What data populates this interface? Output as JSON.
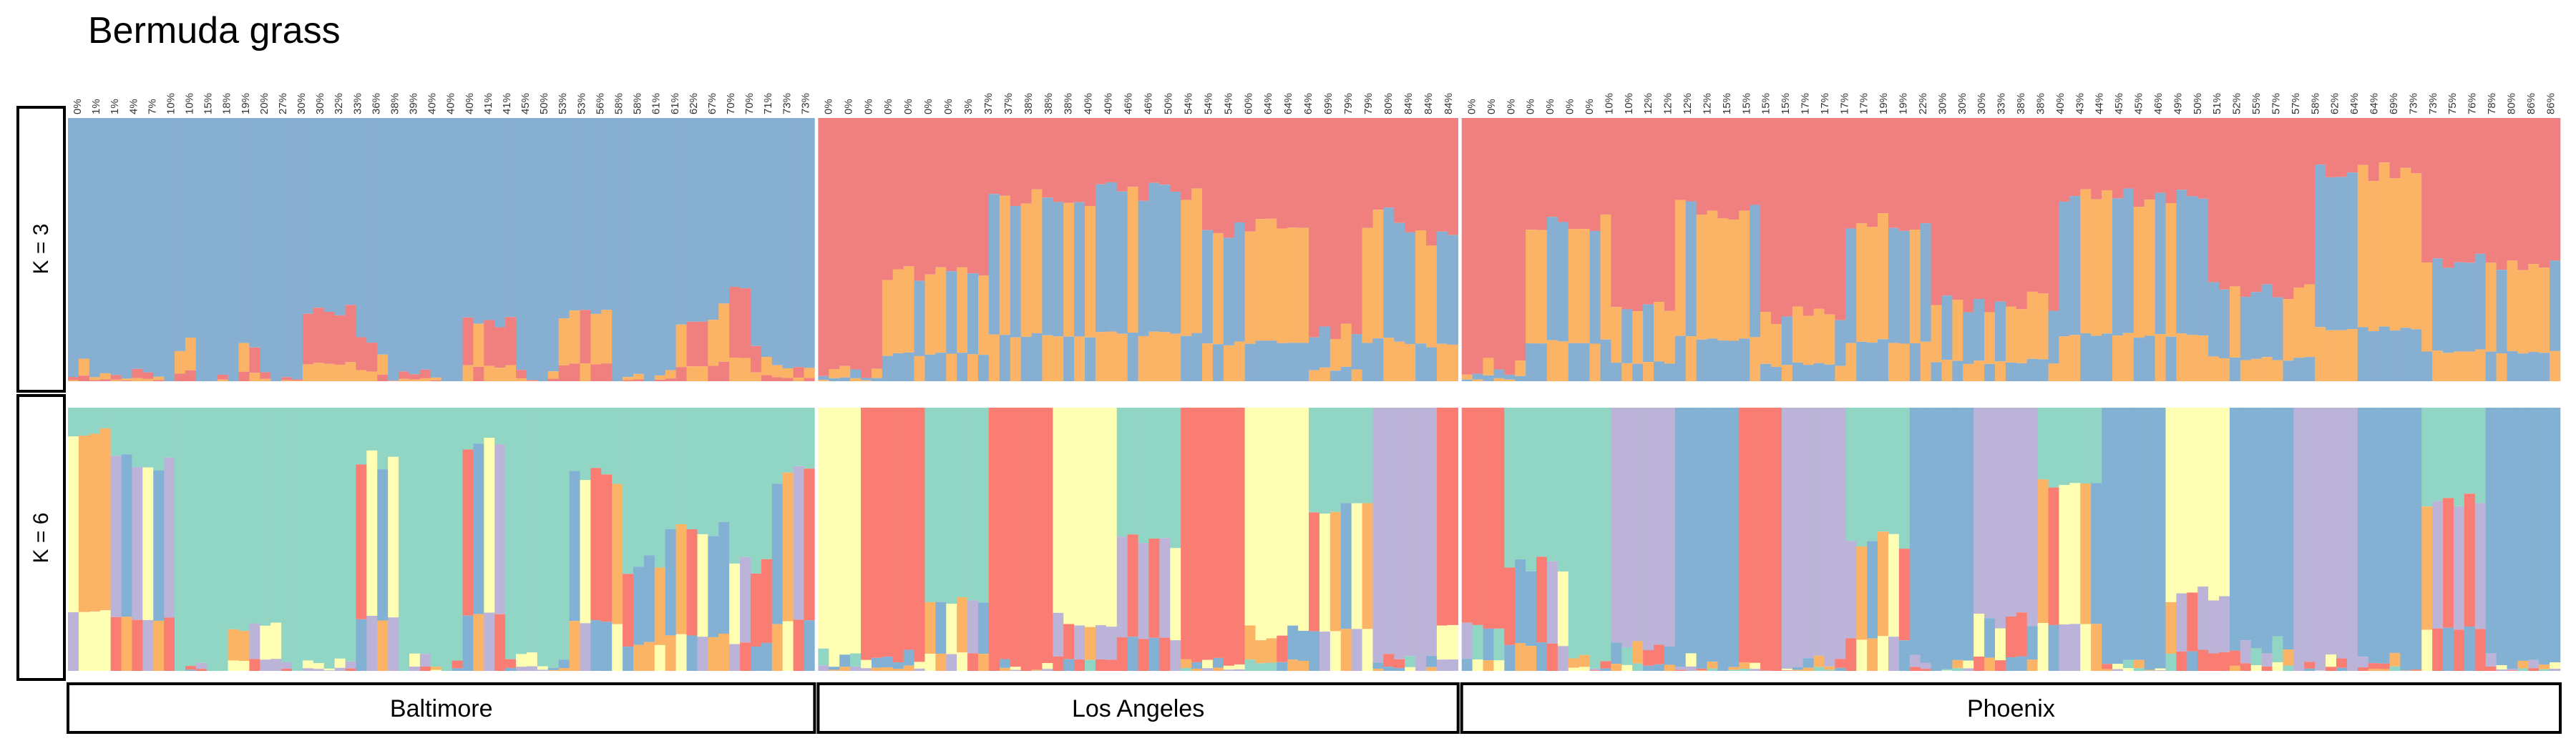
{
  "chart_data": {
    "type": "stacked-bar",
    "title": "Bermuda grass",
    "facets": [
      "K = 3",
      "K = 6"
    ],
    "populations": [
      {
        "name": "Baltimore",
        "n": 70,
        "labels": [
          "0%",
          "1%",
          "1%",
          "4%",
          "7%",
          "10%",
          "10%",
          "15%",
          "18%",
          "19%",
          "20%",
          "27%",
          "30%",
          "30%",
          "32%",
          "33%",
          "36%",
          "38%",
          "39%",
          "40%",
          "40%",
          "40%",
          "41%",
          "41%",
          "45%",
          "50%",
          "53%",
          "53%",
          "56%",
          "58%",
          "58%",
          "61%",
          "61%",
          "62%",
          "67%",
          "70%",
          "70%",
          "71%",
          "73%",
          "73%"
        ]
      },
      {
        "name": "Los Angeles",
        "n": 60,
        "labels": [
          "0%",
          "0%",
          "0%",
          "0%",
          "0%",
          "0%",
          "0%",
          "3%",
          "37%",
          "37%",
          "38%",
          "38%",
          "38%",
          "40%",
          "40%",
          "46%",
          "46%",
          "50%",
          "54%",
          "54%",
          "54%",
          "60%",
          "64%",
          "64%",
          "64%",
          "69%",
          "79%",
          "79%",
          "80%",
          "84%",
          "84%",
          "84%"
        ]
      },
      {
        "name": "Phoenix",
        "n": 103,
        "labels": [
          "0%",
          "0%",
          "0%",
          "0%",
          "0%",
          "0%",
          "0%",
          "10%",
          "10%",
          "12%",
          "12%",
          "12%",
          "12%",
          "15%",
          "15%",
          "15%",
          "15%",
          "17%",
          "17%",
          "17%",
          "17%",
          "19%",
          "19%",
          "22%",
          "30%",
          "30%",
          "30%",
          "33%",
          "38%",
          "38%",
          "40%",
          "43%",
          "44%",
          "45%",
          "45%",
          "46%",
          "49%",
          "50%",
          "51%",
          "52%",
          "55%",
          "57%",
          "57%",
          "58%",
          "62%",
          "64%",
          "64%",
          "69%",
          "73%",
          "73%",
          "75%",
          "76%",
          "78%",
          "80%",
          "86%",
          "86%"
        ]
      }
    ],
    "k3_clusters": [
      "#f08080",
      "#87afd2",
      "#fbb366"
    ],
    "k6_clusters": [
      "#91d5c5",
      "#ffffb3",
      "#bbb4d8",
      "#f97d72",
      "#82b1d3",
      "#fbb366"
    ],
    "k3_segments": [
      {
        "from": 0,
        "to": 2,
        "cluster": 1,
        "level": 0.95
      },
      {
        "from": 2,
        "to": 10,
        "cluster": 1,
        "level": 0.98
      },
      {
        "from": 10,
        "to": 12,
        "cluster": 1,
        "level": 0.86
      },
      {
        "from": 12,
        "to": 16,
        "cluster": 1,
        "level": 0.98
      },
      {
        "from": 16,
        "to": 18,
        "cluster": 1,
        "level": 0.86
      },
      {
        "from": 18,
        "to": 22,
        "cluster": 1,
        "level": 0.98
      },
      {
        "from": 22,
        "to": 27,
        "cluster": 1,
        "level": 0.75
      },
      {
        "from": 27,
        "to": 30,
        "cluster": 1,
        "level": 0.86
      },
      {
        "from": 30,
        "to": 37,
        "cluster": 1,
        "level": 0.98
      },
      {
        "from": 37,
        "to": 42,
        "cluster": 1,
        "level": 0.76
      },
      {
        "from": 42,
        "to": 46,
        "cluster": 1,
        "level": 0.98
      },
      {
        "from": 46,
        "to": 51,
        "cluster": 1,
        "level": 0.76
      },
      {
        "from": 51,
        "to": 57,
        "cluster": 1,
        "level": 0.98
      },
      {
        "from": 57,
        "to": 61,
        "cluster": 1,
        "level": 0.8
      },
      {
        "from": 61,
        "to": 64,
        "cluster": 1,
        "level": 0.68
      },
      {
        "from": 64,
        "to": 66,
        "cluster": 1,
        "level": 0.9
      },
      {
        "from": 66,
        "to": 70,
        "cluster": 1,
        "level": 0.96
      },
      {
        "from": 70,
        "to": 76,
        "cluster": 0,
        "level": 0.98
      },
      {
        "from": 76,
        "to": 86,
        "cluster": 0,
        "level": 0.6
      },
      {
        "from": 86,
        "to": 96,
        "cluster": 0,
        "level": 0.3
      },
      {
        "from": 96,
        "to": 106,
        "cluster": 0,
        "level": 0.28
      },
      {
        "from": 106,
        "to": 116,
        "cluster": 0,
        "level": 0.42
      },
      {
        "from": 116,
        "to": 121,
        "cluster": 0,
        "level": 0.8
      },
      {
        "from": 121,
        "to": 125,
        "cluster": 0,
        "level": 0.38
      },
      {
        "from": 125,
        "to": 130,
        "cluster": 0,
        "level": 0.45
      },
      {
        "from": 130,
        "to": 136,
        "cluster": 0,
        "level": 0.95
      },
      {
        "from": 136,
        "to": 144,
        "cluster": 0,
        "level": 0.4
      },
      {
        "from": 144,
        "to": 150,
        "cluster": 0,
        "level": 0.7
      },
      {
        "from": 150,
        "to": 158,
        "cluster": 0,
        "level": 0.35
      },
      {
        "from": 158,
        "to": 166,
        "cluster": 0,
        "level": 0.75
      },
      {
        "from": 166,
        "to": 174,
        "cluster": 0,
        "level": 0.4
      },
      {
        "from": 174,
        "to": 186,
        "cluster": 0,
        "level": 0.7
      },
      {
        "from": 186,
        "to": 200,
        "cluster": 0,
        "level": 0.3
      },
      {
        "from": 200,
        "to": 210,
        "cluster": 0,
        "level": 0.65
      },
      {
        "from": 210,
        "to": 220,
        "cluster": 0,
        "level": 0.2
      },
      {
        "from": 220,
        "to": 233,
        "cluster": 0,
        "level": 0.55
      }
    ],
    "k6_segments": [
      {
        "from": 0,
        "to": 4,
        "cluster": 0,
        "level": 0.1
      },
      {
        "from": 4,
        "to": 10,
        "cluster": 0,
        "level": 0.2
      },
      {
        "from": 10,
        "to": 15,
        "cluster": 0,
        "level": 0.97
      },
      {
        "from": 15,
        "to": 20,
        "cluster": 0,
        "level": 0.85
      },
      {
        "from": 20,
        "to": 27,
        "cluster": 0,
        "level": 0.97
      },
      {
        "from": 27,
        "to": 31,
        "cluster": 0,
        "level": 0.2
      },
      {
        "from": 31,
        "to": 37,
        "cluster": 0,
        "level": 0.97
      },
      {
        "from": 37,
        "to": 41,
        "cluster": 0,
        "level": 0.15
      },
      {
        "from": 41,
        "to": 47,
        "cluster": 0,
        "level": 0.97
      },
      {
        "from": 47,
        "to": 52,
        "cluster": 0,
        "level": 0.25
      },
      {
        "from": 52,
        "to": 56,
        "cluster": 0,
        "level": 0.6
      },
      {
        "from": 56,
        "to": 62,
        "cluster": 0,
        "level": 0.45
      },
      {
        "from": 62,
        "to": 66,
        "cluster": 0,
        "level": 0.6
      },
      {
        "from": 66,
        "to": 70,
        "cluster": 0,
        "level": 0.25
      },
      {
        "from": 70,
        "to": 74,
        "cluster": 1,
        "level": 0.95
      },
      {
        "from": 74,
        "to": 80,
        "cluster": 3,
        "level": 0.95
      },
      {
        "from": 80,
        "to": 86,
        "cluster": 0,
        "level": 0.75
      },
      {
        "from": 86,
        "to": 92,
        "cluster": 3,
        "level": 0.97
      },
      {
        "from": 92,
        "to": 98,
        "cluster": 1,
        "level": 0.8
      },
      {
        "from": 98,
        "to": 104,
        "cluster": 0,
        "level": 0.5
      },
      {
        "from": 104,
        "to": 110,
        "cluster": 3,
        "level": 0.97
      },
      {
        "from": 110,
        "to": 116,
        "cluster": 1,
        "level": 0.85
      },
      {
        "from": 116,
        "to": 122,
        "cluster": 0,
        "level": 0.4
      },
      {
        "from": 122,
        "to": 128,
        "cluster": 2,
        "level": 0.97
      },
      {
        "from": 128,
        "to": 134,
        "cluster": 3,
        "level": 0.8
      },
      {
        "from": 134,
        "to": 140,
        "cluster": 0,
        "level": 0.6
      },
      {
        "from": 140,
        "to": 144,
        "cluster": 0,
        "level": 0.97
      },
      {
        "from": 144,
        "to": 150,
        "cluster": 2,
        "level": 0.9
      },
      {
        "from": 150,
        "to": 156,
        "cluster": 4,
        "level": 0.97
      },
      {
        "from": 156,
        "to": 160,
        "cluster": 3,
        "level": 0.97
      },
      {
        "from": 160,
        "to": 166,
        "cluster": 2,
        "level": 0.97
      },
      {
        "from": 166,
        "to": 172,
        "cluster": 0,
        "level": 0.5
      },
      {
        "from": 172,
        "to": 178,
        "cluster": 4,
        "level": 0.97
      },
      {
        "from": 178,
        "to": 184,
        "cluster": 2,
        "level": 0.8
      },
      {
        "from": 184,
        "to": 190,
        "cluster": 0,
        "level": 0.3
      },
      {
        "from": 190,
        "to": 196,
        "cluster": 4,
        "level": 0.97
      },
      {
        "from": 196,
        "to": 202,
        "cluster": 1,
        "level": 0.7
      },
      {
        "from": 202,
        "to": 208,
        "cluster": 4,
        "level": 0.9
      },
      {
        "from": 208,
        "to": 214,
        "cluster": 2,
        "level": 0.97
      },
      {
        "from": 214,
        "to": 220,
        "cluster": 4,
        "level": 0.97
      },
      {
        "from": 220,
        "to": 226,
        "cluster": 0,
        "level": 0.35
      },
      {
        "from": 226,
        "to": 233,
        "cluster": 4,
        "level": 0.97
      }
    ]
  }
}
